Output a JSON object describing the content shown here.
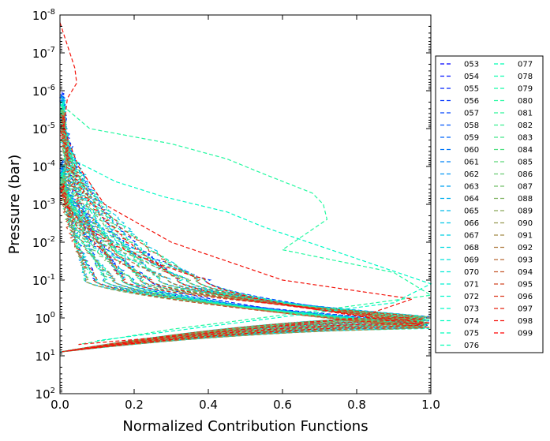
{
  "chart_data": {
    "type": "line",
    "xlabel": "Normalized Contribution Functions",
    "ylabel": "Pressure (bar)",
    "xlim": [
      0.0,
      1.0
    ],
    "ylim": [
      100,
      1e-08
    ],
    "yscale": "log",
    "xticks": [
      "0.0",
      "0.2",
      "0.4",
      "0.6",
      "0.8",
      "1.0"
    ],
    "yticks": [
      {
        "base": "10",
        "exp": "-8"
      },
      {
        "base": "10",
        "exp": "-7"
      },
      {
        "base": "10",
        "exp": "-6"
      },
      {
        "base": "10",
        "exp": "-5"
      },
      {
        "base": "10",
        "exp": "-4"
      },
      {
        "base": "10",
        "exp": "-3"
      },
      {
        "base": "10",
        "exp": "-2"
      },
      {
        "base": "10",
        "exp": "-1"
      },
      {
        "base": "10",
        "exp": "0"
      },
      {
        "base": "10",
        "exp": "1"
      },
      {
        "base": "10",
        "exp": "2"
      }
    ],
    "grid": false,
    "legend_position": "right, outside plot",
    "line_style": "dashed",
    "colormap": "rainbow (purple to red)",
    "series_names": [
      "053",
      "054",
      "055",
      "056",
      "057",
      "058",
      "059",
      "060",
      "061",
      "062",
      "063",
      "064",
      "065",
      "066",
      "067",
      "068",
      "069",
      "070",
      "071",
      "072",
      "073",
      "074",
      "075",
      "076",
      "077",
      "078",
      "079",
      "080",
      "081",
      "082",
      "083",
      "084",
      "085",
      "086",
      "087",
      "088",
      "089",
      "090",
      "091",
      "092",
      "093",
      "094",
      "095",
      "096",
      "097",
      "098",
      "099"
    ]
  }
}
